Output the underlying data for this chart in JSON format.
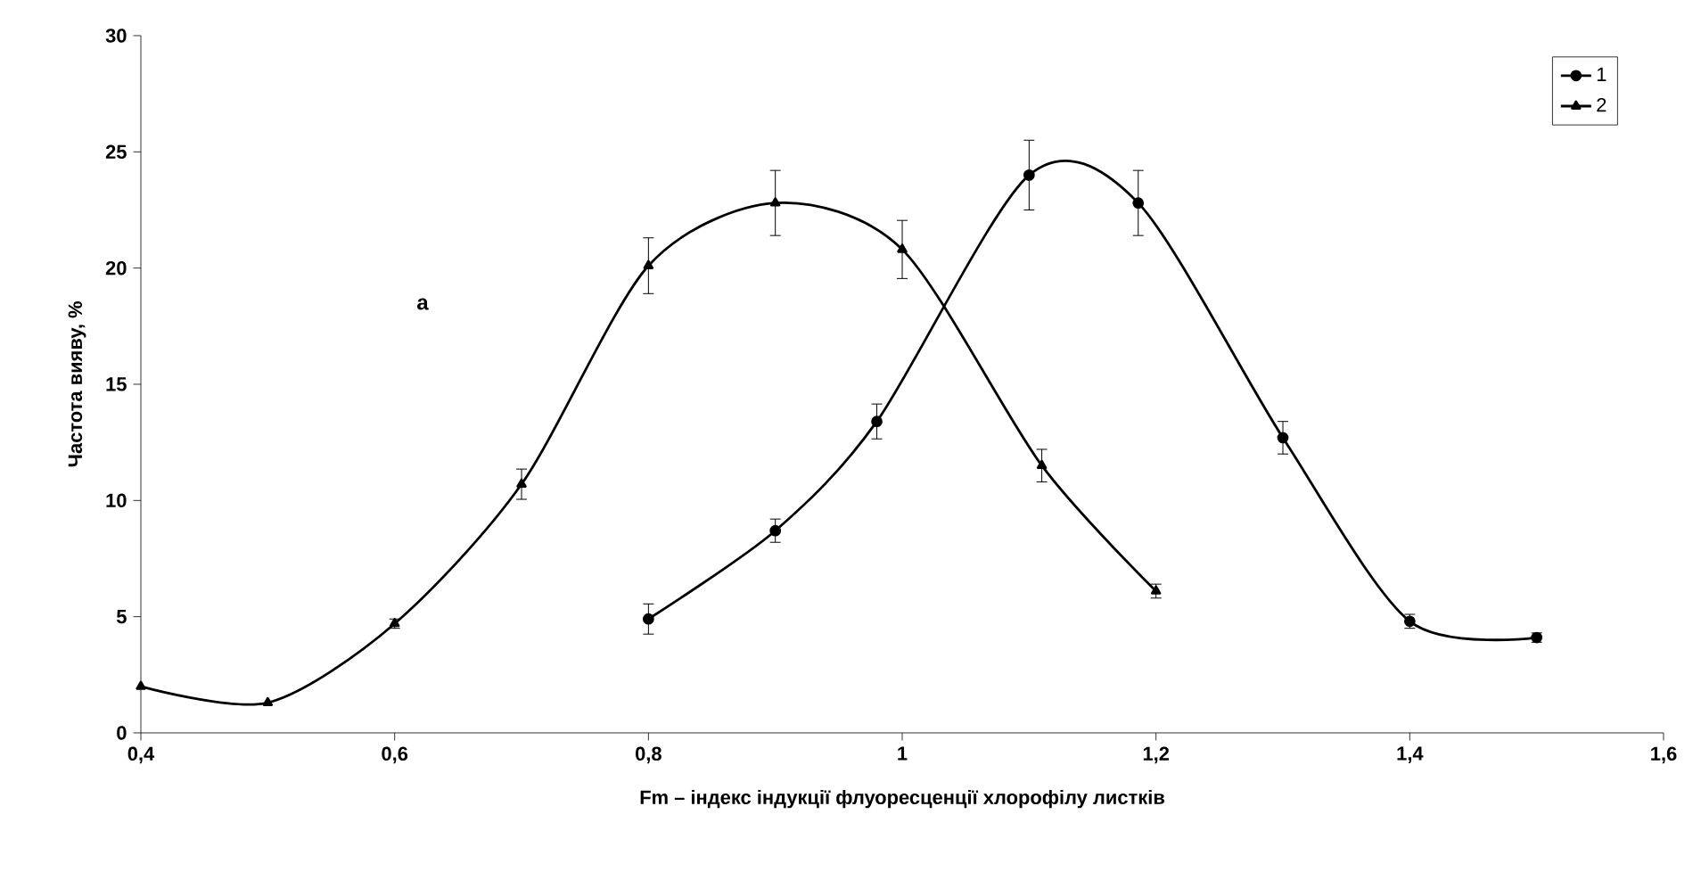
{
  "chart_data": {
    "type": "line",
    "xlabel": "Fm – індекс індукції флуоресценції хлорофілу листків",
    "ylabel": "Частота вияву, %",
    "annotations": [
      "a"
    ],
    "series": [
      {
        "name": "1",
        "color": "#000000",
        "marker": "circle",
        "x": [
          0.8,
          0.9,
          0.98,
          1.1,
          1.186,
          1.3,
          1.4,
          1.5
        ],
        "values": [
          4.9,
          8.7,
          13.4,
          24.0,
          22.8,
          12.7,
          4.8,
          4.1
        ],
        "errors": [
          0.65,
          0.5,
          0.75,
          1.5,
          1.4,
          0.7,
          0.3,
          0.2
        ]
      },
      {
        "name": "2",
        "color": "#000000",
        "marker": "triangle",
        "x": [
          0.4,
          0.5,
          0.6,
          0.7,
          0.8,
          0.9,
          1.0,
          1.11,
          1.2
        ],
        "values": [
          2.0,
          1.3,
          4.7,
          10.7,
          20.1,
          22.8,
          20.8,
          11.5,
          6.1
        ],
        "errors": [
          null,
          null,
          0.2,
          0.65,
          1.2,
          1.4,
          1.25,
          0.7,
          0.3
        ]
      }
    ],
    "xlim": [
      0.4,
      1.6
    ],
    "xticks": [
      {
        "value": 0.4,
        "label": "0,4"
      },
      {
        "value": 0.6,
        "label": "0,6"
      },
      {
        "value": 0.8,
        "label": "0,8"
      },
      1,
      {
        "value": 1.2,
        "label": "1,2"
      },
      {
        "value": 1.4,
        "label": "1,4"
      },
      {
        "value": 1.6,
        "label": "1,6"
      }
    ],
    "ylim": [
      0,
      30
    ],
    "yticks": [
      0,
      5,
      10,
      15,
      20,
      25,
      30
    ],
    "grid": false,
    "legend": "top right",
    "line_style": "solid"
  }
}
